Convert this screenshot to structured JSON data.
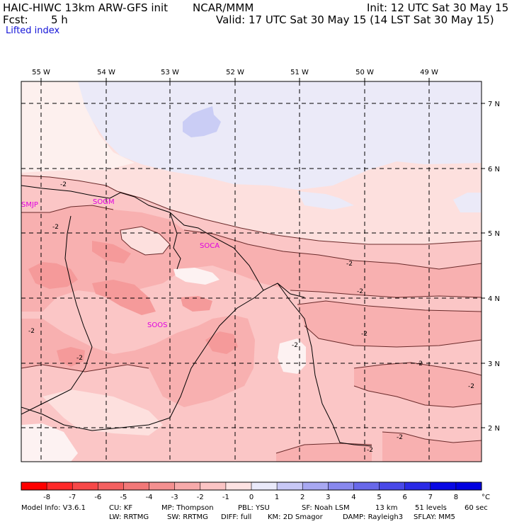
{
  "header": {
    "model": "HAIC-HIWC 13km ARW-GFS init",
    "org": "NCAR/MMM",
    "init": "Init: 12 UTC Sat 30 May 15",
    "fcst_label": "Fcst:",
    "fcst_value": "5 h",
    "valid": "Valid: 17 UTC Sat 30 May 15 (14 LST Sat 30 May 15)",
    "field": "Lifted index"
  },
  "map": {
    "lon_labels": [
      "55 W",
      "54 W",
      "53 W",
      "52 W",
      "51 W",
      "50 W",
      "49 W"
    ],
    "lat_labels": [
      "7 N",
      "6 N",
      "5 N",
      "4 N",
      "3 N",
      "2 N"
    ],
    "station_labels": [
      "SMJP",
      "SOGM",
      "SOCA",
      "SOOS"
    ],
    "contour_labels": [
      "-2",
      "-2",
      "-2",
      "-2",
      "-2",
      "-2",
      "-2",
      "-2",
      "-2",
      "-2",
      "-2",
      "-2"
    ],
    "colors": {
      "fill_neg4": "#f59a9a",
      "fill_neg3": "#f8b0b0",
      "fill_neg2": "#fbc6c6",
      "fill_neg1": "#fde0de",
      "fill_0": "#fdf2f2",
      "fill_pos1": "#e9e8f8",
      "fill_pos2": "#cacdf5"
    }
  },
  "colorbar": {
    "ticks": [
      "-8",
      "-7",
      "-6",
      "-5",
      "-4",
      "-3",
      "-2",
      "-1",
      "0",
      "1",
      "2",
      "3",
      "4",
      "5",
      "6",
      "7",
      "8"
    ],
    "unit": "°C",
    "colors": [
      "#ff0000",
      "#ff2a2a",
      "#f74848",
      "#f46060",
      "#f27878",
      "#f49090",
      "#f7aaaa",
      "#fbc4c4",
      "#fde2e2",
      "#eaeafa",
      "#c8c8f6",
      "#a8a8f2",
      "#8888ee",
      "#6868ea",
      "#4848e8",
      "#2a2ae6",
      "#0808e4"
    ]
  },
  "footer": {
    "line1": [
      "Model Info: V3.6.1",
      "CU: KF",
      "MP: Thompson",
      "PBL: YSU",
      "SF: Noah LSM",
      "13 km",
      "51 levels",
      "60 sec"
    ],
    "line2": [
      "LW: RRTMG",
      "SW: RRTMG",
      "DIFF: full",
      "KM: 2D Smagor",
      "DAMP: Rayleigh3",
      "SFLAY: MM5"
    ]
  }
}
